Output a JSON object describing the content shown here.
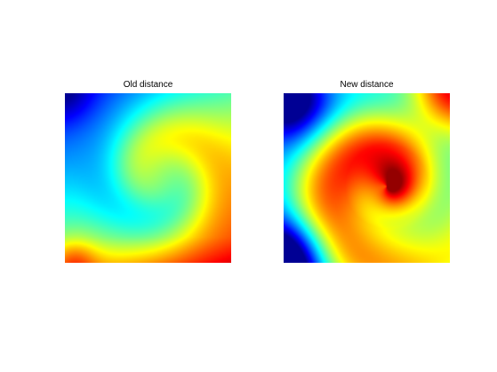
{
  "chart_data": [
    {
      "type": "heatmap",
      "title": "Old distance",
      "colormap": "jet",
      "xlabel": "",
      "ylabel": "",
      "axes_visible": false,
      "grid": false,
      "legend": "none",
      "pattern": "swirl field; blue at top-left, cyan/yellow band across middle, orange/red toward bottom with dark red at bottom-left corner; spiral center right of middle"
    },
    {
      "type": "heatmap",
      "title": "New distance",
      "colormap": "jet",
      "xlabel": "",
      "ylabel": "",
      "axes_visible": false,
      "grid": false,
      "legend": "none",
      "pattern": "tighter swirl; blue at top-left and bottom-left corners, red spiral arms wrapping around dark red center right of middle, red at top-right corner, yellow at bottom-right corner"
    }
  ]
}
